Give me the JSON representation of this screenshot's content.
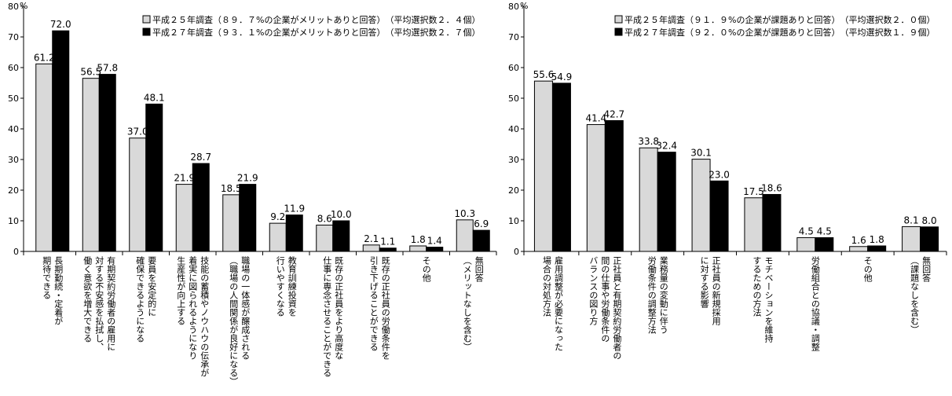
{
  "chart_data": [
    {
      "type": "bar",
      "unit": "%",
      "ylim": [
        0,
        80
      ],
      "yticks": [
        0,
        10,
        20,
        30,
        40,
        50,
        60,
        70,
        80
      ],
      "grid": false,
      "legend_position": "top-right",
      "series": [
        {
          "name": "平成２５年調査（８９．７%の企業がメリットありと回答）　（平均選択数２．４個）",
          "color": "#d9d9d9",
          "values": [
            61.2,
            56.5,
            37.0,
            21.9,
            18.5,
            9.2,
            8.6,
            2.1,
            1.8,
            10.3
          ]
        },
        {
          "name": "平成２７年調査（９３．１%の企業がメリットありと回答）　（平均選択数２．７個）",
          "color": "#000000",
          "values": [
            72.0,
            57.8,
            48.1,
            28.7,
            21.9,
            11.9,
            10.0,
            1.1,
            1.4,
            6.9
          ]
        }
      ],
      "categories": [
        [
          "長期勤続・定着が",
          "期待できる"
        ],
        [
          "有期契約労働者の雇用に",
          "対する不安感を払拭し、",
          "働く意欲を増大できる"
        ],
        [
          "要員を安定的に",
          "確保できるようになる"
        ],
        [
          "技能の蓄積やノウハウの伝承が",
          "着実に図られるようになり",
          "生産性が向上する"
        ],
        [
          "職場の一体感が醸成される",
          "（職場の人間関係が良好になる）"
        ],
        [
          "教育訓練投資を",
          "行いやすくなる"
        ],
        [
          "既存の正社員をより高度な",
          "仕事に専念させることができる"
        ],
        [
          "既存の正社員の労働条件を",
          "引き下げることができる"
        ],
        [
          "その他"
        ],
        [
          "無回答",
          "（メリットなしを含む）"
        ]
      ]
    },
    {
      "type": "bar",
      "unit": "%",
      "ylim": [
        0,
        80
      ],
      "yticks": [
        0,
        10,
        20,
        30,
        40,
        50,
        60,
        70,
        80
      ],
      "grid": false,
      "legend_position": "top-right",
      "series": [
        {
          "name": "平成２５年調査（９１．９%の企業が課題ありと回答）　（平均選択数２．０個）",
          "color": "#d9d9d9",
          "values": [
            55.6,
            41.4,
            33.8,
            30.1,
            17.5,
            4.5,
            1.6,
            8.1
          ]
        },
        {
          "name": "平成２７年調査（９２．０%の企業が課題ありと回答）　（平均選択数１．９個）",
          "color": "#000000",
          "values": [
            54.9,
            42.7,
            32.4,
            23.0,
            18.6,
            4.5,
            1.8,
            8.0
          ]
        }
      ],
      "categories": [
        [
          "雇用調整が必要になった",
          "場合の対処方法"
        ],
        [
          "正社員と有期契約労働者の",
          "間の仕事や労働条件の",
          "バランスの図り方"
        ],
        [
          "業務量の変動に伴う",
          "労働条件の調整方法"
        ],
        [
          "正社員の新規採用",
          "に対する影響"
        ],
        [
          "モチベーションを維持",
          "するための方法"
        ],
        [
          "労働組合との協議・調整"
        ],
        [
          "その他"
        ],
        [
          "無回答",
          "（課題なしを含む）"
        ]
      ]
    }
  ]
}
